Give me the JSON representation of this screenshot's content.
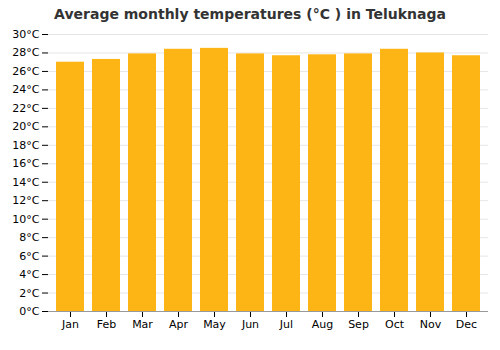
{
  "chart_data": {
    "type": "bar",
    "title": "Average monthly temperatures (°C ) in Teluknaga",
    "categories": [
      "Jan",
      "Feb",
      "Mar",
      "Apr",
      "May",
      "Jun",
      "Jul",
      "Aug",
      "Sep",
      "Oct",
      "Nov",
      "Dec"
    ],
    "values": [
      27.0,
      27.3,
      27.9,
      28.4,
      28.5,
      27.9,
      27.7,
      27.8,
      27.9,
      28.4,
      28.0,
      27.7
    ],
    "color": "#FDB515",
    "ylim": [
      0,
      30
    ],
    "yticks": [
      {
        "value": 0,
        "label": "0°C"
      },
      {
        "value": 2,
        "label": "2°C"
      },
      {
        "value": 4,
        "label": "4°C"
      },
      {
        "value": 6,
        "label": "6°C"
      },
      {
        "value": 8,
        "label": "8°C"
      },
      {
        "value": 10,
        "label": "10°C"
      },
      {
        "value": 12,
        "label": "12°C"
      },
      {
        "value": 14,
        "label": "14°C"
      },
      {
        "value": 16,
        "label": "16°C"
      },
      {
        "value": 18,
        "label": "18°C"
      },
      {
        "value": 20,
        "label": "20°C"
      },
      {
        "value": 22,
        "label": "22°C"
      },
      {
        "value": 24,
        "label": "24°C"
      },
      {
        "value": 26,
        "label": "26°C"
      },
      {
        "value": 28,
        "label": "28°C"
      },
      {
        "value": 30,
        "label": "30°C"
      }
    ],
    "grid": true
  }
}
